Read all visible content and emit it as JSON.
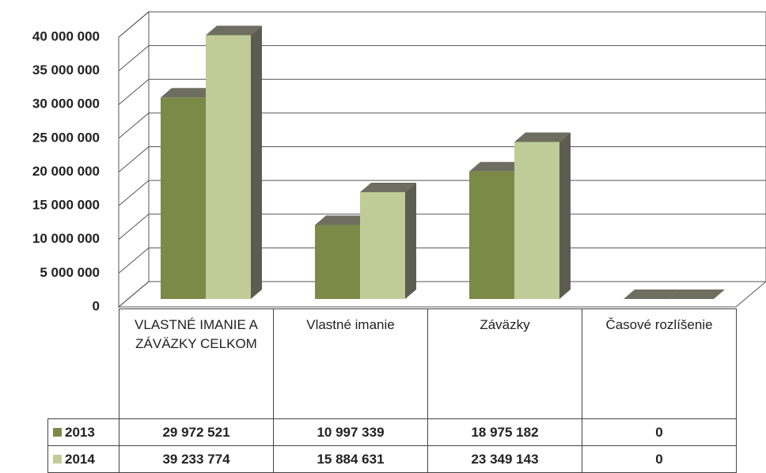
{
  "chart_data": {
    "type": "bar3d",
    "categories": [
      "VLASTNÉ IMANIE A ZÁVÄZKY CELKOM",
      "Vlastné imanie",
      "Záväzky",
      "Časové rozlíšenie"
    ],
    "series": [
      {
        "name": "2013",
        "color": "#7b8a47",
        "values": [
          29972521,
          10997339,
          18975182,
          0
        ],
        "value_labels": [
          "29 972 521",
          "10 997 339",
          "18 975 182",
          "0"
        ]
      },
      {
        "name": "2014",
        "color": "#bfcc98",
        "values": [
          39233774,
          15884631,
          23349143,
          0
        ],
        "value_labels": [
          "39 233 774",
          "15 884 631",
          "23 349 143",
          "0"
        ]
      }
    ],
    "ylim": [
      0,
      40000000
    ],
    "yticks": [
      {
        "value": 0,
        "label": "0"
      },
      {
        "value": 5000000,
        "label": "5 000 000"
      },
      {
        "value": 10000000,
        "label": "10 000 000"
      },
      {
        "value": 15000000,
        "label": "15 000 000"
      },
      {
        "value": 20000000,
        "label": "20 000 000"
      },
      {
        "value": 25000000,
        "label": "25 000 000"
      },
      {
        "value": 30000000,
        "label": "30 000 000"
      },
      {
        "value": 35000000,
        "label": "35 000 000"
      },
      {
        "value": 40000000,
        "label": "40 000 000"
      }
    ],
    "grid": true
  }
}
